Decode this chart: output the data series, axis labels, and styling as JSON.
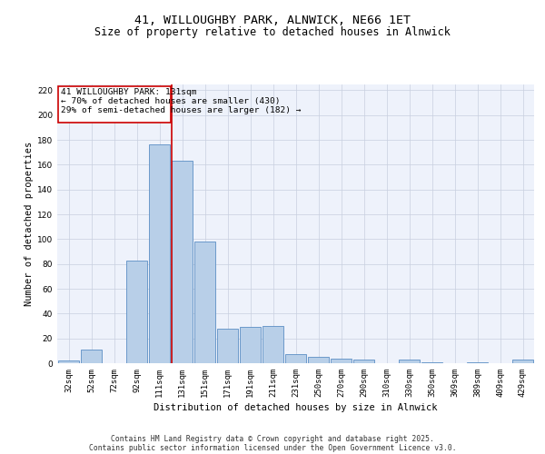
{
  "title_line1": "41, WILLOUGHBY PARK, ALNWICK, NE66 1ET",
  "title_line2": "Size of property relative to detached houses in Alnwick",
  "xlabel": "Distribution of detached houses by size in Alnwick",
  "ylabel": "Number of detached properties",
  "categories": [
    "32sqm",
    "52sqm",
    "72sqm",
    "92sqm",
    "111sqm",
    "131sqm",
    "151sqm",
    "171sqm",
    "191sqm",
    "211sqm",
    "231sqm",
    "250sqm",
    "270sqm",
    "290sqm",
    "310sqm",
    "330sqm",
    "350sqm",
    "369sqm",
    "389sqm",
    "409sqm",
    "429sqm"
  ],
  "values": [
    2,
    11,
    0,
    83,
    176,
    163,
    98,
    28,
    29,
    30,
    7,
    5,
    4,
    3,
    0,
    3,
    1,
    0,
    1,
    0,
    3
  ],
  "bar_color": "#b8cfe8",
  "bar_edge_color": "#5b8ec4",
  "highlight_line_color": "#cc0000",
  "annotation_box_color": "#cc0000",
  "annotation_line1": "41 WILLOUGHBY PARK: 131sqm",
  "annotation_line2": "← 70% of detached houses are smaller (430)",
  "annotation_line3": "29% of semi-detached houses are larger (182) →",
  "ylim_max": 225,
  "yticks": [
    0,
    20,
    40,
    60,
    80,
    100,
    120,
    140,
    160,
    180,
    200,
    220
  ],
  "background_color": "#eef2fb",
  "grid_color": "#c8cfdf",
  "footer_line1": "Contains HM Land Registry data © Crown copyright and database right 2025.",
  "footer_line2": "Contains public sector information licensed under the Open Government Licence v3.0.",
  "title1_fontsize": 9.5,
  "title2_fontsize": 8.5,
  "axis_label_fontsize": 7.5,
  "tick_fontsize": 6.5,
  "annotation_fontsize": 6.8,
  "footer_fontsize": 5.8
}
